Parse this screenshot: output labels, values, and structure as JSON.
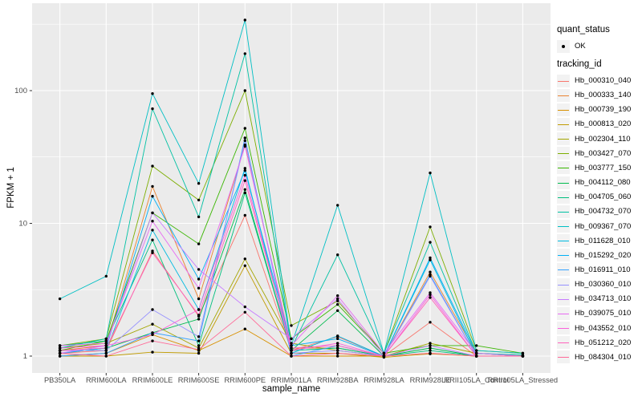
{
  "figure": {
    "background": "#FFFFFF",
    "panel_bg": "#EBEBEB",
    "grid_color": "#FFFFFF",
    "tick_color": "#333333",
    "tick_text_color": "#4D4D4D",
    "point_color": "#000000"
  },
  "yaxis": {
    "title": "FPKM + 1",
    "tick_labels": [
      "1",
      "10",
      "100"
    ]
  },
  "xaxis": {
    "title": "sample_name"
  },
  "legend": {
    "quant_status": {
      "title": "quant_status",
      "items": [
        {
          "label": "OK",
          "marker": "point"
        }
      ]
    },
    "tracking_id": {
      "title": "tracking_id"
    }
  },
  "chart_data": {
    "type": "line",
    "x_categories": [
      "PB350LA",
      "RRIM600LA",
      "RRIM600LE",
      "RRIM600SE",
      "RRIM600PE",
      "RRIM901LA",
      "RRIM928BA",
      "RRIM928LA",
      "RRIM928LE",
      "RRII105LA_Control",
      "RRII105LA_Stressed"
    ],
    "xlabel": "sample_name",
    "ylabel": "FPKM + 1",
    "yscale": "log10",
    "y_ticks": [
      1,
      10,
      100
    ],
    "ylim": [
      0.75,
      430
    ],
    "grid": true,
    "legend_position": "right",
    "point_marker": "black-dot",
    "series": [
      {
        "name": "Hb_000310_040",
        "color": "#F8766D",
        "values": [
          1.05,
          1.1,
          6.2,
          2.0,
          11.5,
          1.1,
          1.4,
          1.0,
          1.8,
          1.0,
          1.0
        ]
      },
      {
        "name": "Hb_000333_140",
        "color": "#EA8331",
        "values": [
          1.1,
          1.2,
          19,
          2.7,
          39,
          1.15,
          1.15,
          1.0,
          4.3,
          1.05,
          1.0
        ]
      },
      {
        "name": "Hb_000739_190",
        "color": "#D89000",
        "values": [
          1.0,
          1.05,
          1.45,
          1.1,
          1.6,
          1.0,
          1.0,
          1.0,
          1.05,
          1.0,
          1.0
        ]
      },
      {
        "name": "Hb_000813_020",
        "color": "#C09B00",
        "values": [
          1.0,
          1.0,
          1.07,
          1.05,
          4.8,
          1.05,
          1.05,
          0.98,
          1.04,
          1.0,
          1.0
        ]
      },
      {
        "name": "Hb_002304_110",
        "color": "#A3A500",
        "values": [
          1.15,
          1.25,
          1.74,
          1.15,
          5.4,
          1.25,
          1.1,
          1.0,
          1.25,
          1.05,
          1.0
        ]
      },
      {
        "name": "Hb_003427_070",
        "color": "#7CAE00",
        "values": [
          1.2,
          1.35,
          27,
          15,
          100,
          1.7,
          2.6,
          1.05,
          9.4,
          1.1,
          1.05
        ]
      },
      {
        "name": "Hb_003777_150",
        "color": "#39B600",
        "values": [
          1.1,
          1.3,
          12,
          7.0,
          52,
          1.35,
          2.45,
          1.05,
          1.2,
          1.2,
          1.05
        ]
      },
      {
        "name": "Hb_004112_080",
        "color": "#00BB4E",
        "values": [
          1.05,
          1.15,
          1.5,
          1.9,
          18,
          1.1,
          2.2,
          1.0,
          1.15,
          1.0,
          1.0
        ]
      },
      {
        "name": "Hb_004705_060",
        "color": "#00BF7D",
        "values": [
          1.2,
          1.3,
          7.5,
          1.2,
          17,
          1.1,
          1.15,
          1.0,
          1.1,
          1.0,
          1.0
        ]
      },
      {
        "name": "Hb_004732_070",
        "color": "#00C1A3",
        "values": [
          1.15,
          1.35,
          73,
          11.2,
          190,
          1.15,
          5.8,
          1.05,
          7.2,
          1.05,
          1.02
        ]
      },
      {
        "name": "Hb_009367_070",
        "color": "#00BFC4",
        "values": [
          2.7,
          4.0,
          95,
          20,
          340,
          1.2,
          13.7,
          1.05,
          24,
          1.1,
          1.05
        ]
      },
      {
        "name": "Hb_011628_010",
        "color": "#00BAE0",
        "values": [
          1.1,
          1.1,
          8.9,
          2.24,
          26,
          1.05,
          1.42,
          1.0,
          5.3,
          1.0,
          1.0
        ]
      },
      {
        "name": "Hb_015292_020",
        "color": "#00B0F6",
        "values": [
          1.05,
          1.15,
          16,
          3.8,
          25,
          1.2,
          1.35,
          1.0,
          5.5,
          1.05,
          1.0
        ]
      },
      {
        "name": "Hb_016911_010",
        "color": "#35A2FF",
        "values": [
          1.0,
          1.05,
          1.5,
          1.3,
          44,
          1.0,
          1.2,
          1.0,
          4.1,
          1.0,
          1.0
        ]
      },
      {
        "name": "Hb_030360_010",
        "color": "#9590FF",
        "values": [
          1.1,
          1.1,
          2.24,
          1.4,
          42,
          1.05,
          1.1,
          1.0,
          4.0,
          1.0,
          1.0
        ]
      },
      {
        "name": "Hb_034713_010",
        "color": "#C77CFF",
        "values": [
          1.05,
          1.2,
          12,
          4.5,
          2.35,
          1.35,
          2.7,
          1.0,
          1.2,
          1.0,
          1.0
        ]
      },
      {
        "name": "Hb_039075_010",
        "color": "#E76BF3",
        "values": [
          1.2,
          1.25,
          10.4,
          3.25,
          38,
          1.2,
          2.85,
          1.05,
          3.0,
          1.05,
          1.0
        ]
      },
      {
        "name": "Hb_043552_010",
        "color": "#FA62DB",
        "values": [
          1.15,
          1.2,
          1.45,
          2.24,
          23,
          1.1,
          1.25,
          1.0,
          2.9,
          1.0,
          1.0
        ]
      },
      {
        "name": "Hb_051212_020",
        "color": "#FF62BC",
        "values": [
          1.1,
          1.15,
          6.0,
          2.04,
          21,
          1.15,
          1.2,
          1.0,
          2.76,
          1.0,
          1.0
        ]
      },
      {
        "name": "Hb_084304_010",
        "color": "#FF6A98",
        "values": [
          1.05,
          1.0,
          1.3,
          1.12,
          2.14,
          1.0,
          1.05,
          1.0,
          1.05,
          1.0,
          1.0
        ]
      }
    ]
  }
}
